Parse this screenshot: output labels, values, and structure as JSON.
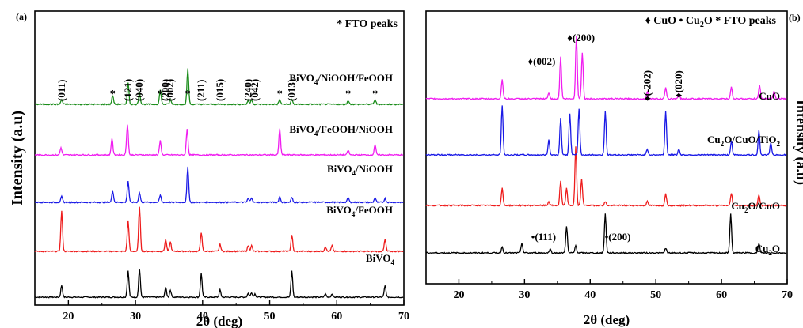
{
  "chart_data": [
    {
      "type": "line",
      "panel_label": "(a)",
      "xlabel": "2θ (deg)",
      "ylabel": "Intensity (a.u)",
      "xlim": [
        15,
        70
      ],
      "xticks": [
        20,
        30,
        40,
        50,
        60,
        70
      ],
      "legend_text": "* FTO peaks",
      "legend_position": "top-right",
      "series": [
        {
          "name": "BiVO4",
          "name_main": "BiVO",
          "name_sub": "4",
          "color": "#000000",
          "peaks": [
            [
              19.0,
              0.25
            ],
            [
              28.9,
              0.55
            ],
            [
              30.6,
              0.6
            ],
            [
              34.5,
              0.2
            ],
            [
              35.2,
              0.15
            ],
            [
              39.8,
              0.5
            ],
            [
              42.6,
              0.15
            ],
            [
              46.8,
              0.08
            ],
            [
              47.3,
              0.1
            ],
            [
              47.8,
              0.07
            ],
            [
              53.3,
              0.55
            ],
            [
              58.3,
              0.07
            ],
            [
              59.3,
              0.07
            ],
            [
              67.2,
              0.24
            ]
          ]
        },
        {
          "name": "BiVO4/FeOOH",
          "name_main": "BiVO",
          "name_sub": "4",
          "name_rest": "/FeOOH",
          "color": "#ee1c1c",
          "peaks": [
            [
              19.0,
              0.85
            ],
            [
              28.9,
              0.65
            ],
            [
              30.6,
              0.95
            ],
            [
              34.5,
              0.25
            ],
            [
              35.2,
              0.2
            ],
            [
              39.8,
              0.4
            ],
            [
              42.6,
              0.15
            ],
            [
              46.8,
              0.12
            ],
            [
              47.3,
              0.12
            ],
            [
              53.3,
              0.35
            ],
            [
              58.3,
              0.1
            ],
            [
              59.3,
              0.12
            ],
            [
              67.2,
              0.25
            ]
          ]
        },
        {
          "name": "BiVO4/NiOOH",
          "name_main": "BiVO",
          "name_sub": "4",
          "name_rest": "/NiOOH",
          "color": "#1a1ae6",
          "peaks": [
            [
              19.0,
              0.12
            ],
            [
              26.6,
              0.25
            ],
            [
              28.9,
              0.45
            ],
            [
              30.6,
              0.2
            ],
            [
              33.7,
              0.15
            ],
            [
              37.8,
              0.75
            ],
            [
              46.8,
              0.08
            ],
            [
              47.3,
              0.1
            ],
            [
              51.5,
              0.12
            ],
            [
              53.3,
              0.1
            ],
            [
              61.7,
              0.1
            ],
            [
              65.7,
              0.1
            ],
            [
              67.2,
              0.08
            ]
          ]
        },
        {
          "name": "BiVO4/FeOOH/NiOOH",
          "name_main": "BiVO",
          "name_sub": "4",
          "name_rest": "/FeOOH/NiOOH",
          "color": "#f01ef0",
          "peaks": [
            [
              18.9,
              0.15
            ],
            [
              26.5,
              0.35
            ],
            [
              28.8,
              0.65
            ],
            [
              33.7,
              0.3
            ],
            [
              37.7,
              0.55
            ],
            [
              51.5,
              0.55
            ],
            [
              61.7,
              0.1
            ],
            [
              65.7,
              0.22
            ]
          ]
        },
        {
          "name": "BiVO4/NiOOH/FeOOH",
          "name_main": "BiVO",
          "name_sub": "4",
          "name_rest": "/NiOOH/FeOOH",
          "color": "#1a8c1a",
          "peaks": [
            [
              19.0,
              0.1
            ],
            [
              26.6,
              0.18
            ],
            [
              28.9,
              0.45
            ],
            [
              30.6,
              0.25
            ],
            [
              33.7,
              0.3
            ],
            [
              35.2,
              0.1
            ],
            [
              37.8,
              0.75
            ],
            [
              46.8,
              0.08
            ],
            [
              47.3,
              0.1
            ],
            [
              51.5,
              0.1
            ],
            [
              53.3,
              0.1
            ],
            [
              61.7,
              0.08
            ],
            [
              65.7,
              0.1
            ]
          ]
        }
      ],
      "annotations": [
        {
          "text": "(011)",
          "x": 19.0,
          "kind": "hkl"
        },
        {
          "text": "(121)",
          "x": 28.9,
          "kind": "hkl"
        },
        {
          "text": "(040)",
          "x": 30.6,
          "kind": "hkl"
        },
        {
          "text": "(200)",
          "x": 34.5,
          "kind": "hkl"
        },
        {
          "text": "(002)",
          "x": 35.2,
          "kind": "hkl"
        },
        {
          "text": "(211)",
          "x": 39.8,
          "kind": "hkl"
        },
        {
          "text": "(015)",
          "x": 42.6,
          "kind": "hkl"
        },
        {
          "text": "(240)",
          "x": 46.8,
          "kind": "hkl"
        },
        {
          "text": "(042)",
          "x": 47.8,
          "kind": "hkl"
        },
        {
          "text": "(013)",
          "x": 53.3,
          "kind": "hkl"
        },
        {
          "text": "*",
          "x": 26.6,
          "kind": "marker"
        },
        {
          "text": "*",
          "x": 33.7,
          "kind": "marker"
        },
        {
          "text": "*",
          "x": 37.8,
          "kind": "marker"
        },
        {
          "text": "*",
          "x": 51.5,
          "kind": "marker"
        },
        {
          "text": "*",
          "x": 61.7,
          "kind": "marker"
        },
        {
          "text": "*",
          "x": 65.7,
          "kind": "marker"
        }
      ]
    },
    {
      "type": "line",
      "panel_label": "(b)",
      "xlabel": "2θ (deg)",
      "ylabel": "Intensity (a.u)",
      "xlim": [
        15,
        70
      ],
      "xticks": [
        20,
        30,
        40,
        50,
        60,
        70
      ],
      "legend_position": "top",
      "legend_items": [
        {
          "symbol": "♦",
          "label": "CuO"
        },
        {
          "symbol": "•",
          "label": "Cu",
          "sub": "2",
          "rest": "O"
        },
        {
          "symbol": "*",
          "label": "FTO peaks"
        }
      ],
      "series": [
        {
          "name": "Cu2O",
          "name_main": "Cu",
          "name_sub": "2",
          "name_rest": "O",
          "color": "#000000",
          "peaks": [
            [
              26.6,
              0.12
            ],
            [
              29.6,
              0.2
            ],
            [
              33.9,
              0.08
            ],
            [
              36.4,
              0.55
            ],
            [
              37.8,
              0.15
            ],
            [
              42.3,
              0.8
            ],
            [
              51.5,
              0.1
            ],
            [
              61.4,
              0.8
            ],
            [
              65.7,
              0.2
            ]
          ]
        },
        {
          "name": "Cu2O/CuO",
          "name_main": "Cu",
          "name_sub": "2",
          "name_rest": "O/CuO",
          "color": "#ee1c1c",
          "peaks": [
            [
              26.6,
              0.35
            ],
            [
              33.7,
              0.08
            ],
            [
              35.5,
              0.5
            ],
            [
              36.4,
              0.35
            ],
            [
              37.8,
              1.2
            ],
            [
              38.7,
              0.55
            ],
            [
              42.3,
              0.08
            ],
            [
              48.7,
              0.08
            ],
            [
              51.5,
              0.25
            ],
            [
              61.5,
              0.25
            ],
            [
              65.7,
              0.22
            ]
          ]
        },
        {
          "name": "Cu2O/CuO/TiO2",
          "name_main": "Cu",
          "name_sub": "2",
          "name_rest": "O/CuO/TiO",
          "name_sub2": "2",
          "color": "#1a1ae6",
          "peaks": [
            [
              26.6,
              1.0
            ],
            [
              33.7,
              0.3
            ],
            [
              35.5,
              0.75
            ],
            [
              36.9,
              0.85
            ],
            [
              38.3,
              0.95
            ],
            [
              42.3,
              0.9
            ],
            [
              48.7,
              0.12
            ],
            [
              51.5,
              0.9
            ],
            [
              53.5,
              0.12
            ],
            [
              61.5,
              0.28
            ],
            [
              65.7,
              0.5
            ],
            [
              67.5,
              0.25
            ]
          ]
        },
        {
          "name": "CuO",
          "name_main": "CuO",
          "color": "#f01ef0",
          "peaks": [
            [
              26.6,
              0.4
            ],
            [
              33.7,
              0.12
            ],
            [
              35.5,
              0.85
            ],
            [
              37.9,
              1.3
            ],
            [
              38.8,
              0.95
            ],
            [
              48.7,
              0.15
            ],
            [
              51.5,
              0.22
            ],
            [
              53.5,
              0.12
            ],
            [
              61.5,
              0.25
            ],
            [
              65.8,
              0.28
            ],
            [
              68.0,
              0.15
            ]
          ]
        }
      ],
      "annotations": [
        {
          "text": "♦(002)",
          "x": 32.6,
          "kind": "hkl"
        },
        {
          "text": "♦(200)",
          "x": 38.6,
          "kind": "hkl"
        },
        {
          "text": "♦(-202)",
          "x": 48.7,
          "kind": "hkl"
        },
        {
          "text": "♦(020)",
          "x": 53.5,
          "kind": "hkl"
        },
        {
          "text": "•(111)",
          "x": 32.9,
          "kind": "hkl"
        },
        {
          "text": "•(200)",
          "x": 44.2,
          "kind": "hkl"
        }
      ]
    }
  ]
}
